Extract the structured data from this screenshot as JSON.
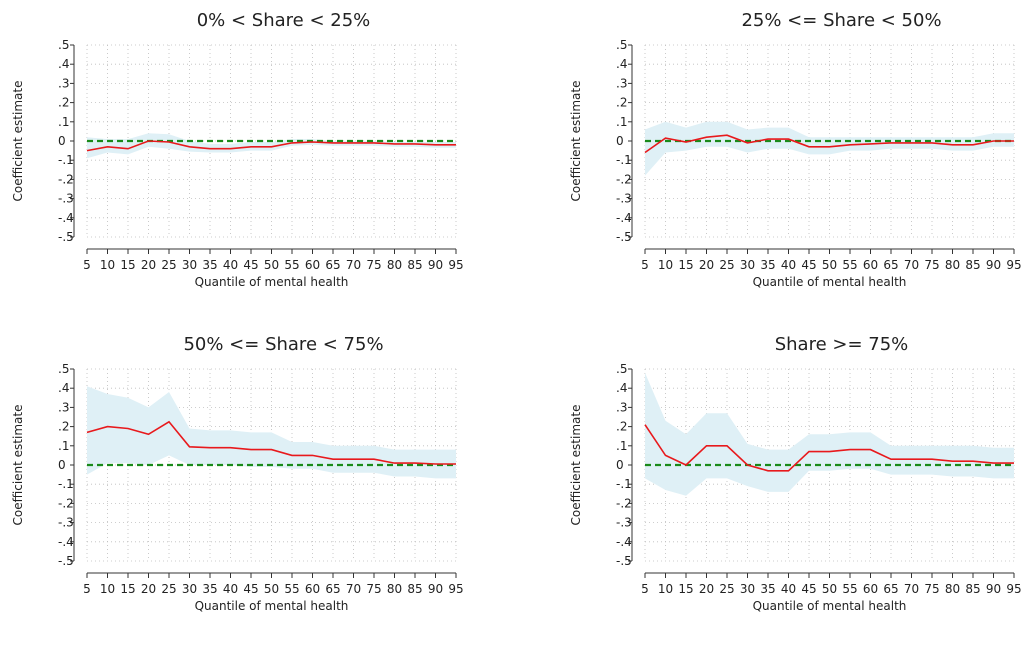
{
  "chart_data": [
    {
      "type": "line",
      "title": "0%  < Share < 25%",
      "xlabel": "Quantile of mental health",
      "ylabel": "Coefficient estimate",
      "x": [
        5,
        10,
        15,
        20,
        25,
        30,
        35,
        40,
        45,
        50,
        55,
        60,
        65,
        70,
        75,
        80,
        85,
        90,
        95
      ],
      "x_tick_labels": [
        "5",
        "10",
        "15",
        "20",
        "25",
        "30",
        "35",
        "40",
        "45",
        "50",
        "55",
        "60",
        "65",
        "70",
        "75",
        "80",
        "85",
        "90",
        "95"
      ],
      "y_tick_labels": [
        ".5",
        ".4",
        ".3",
        ".2",
        ".1",
        "0",
        "-.1",
        "-.2",
        "-.3",
        "-.4",
        "-.5"
      ],
      "ylim": [
        -0.5,
        0.5
      ],
      "grid": true,
      "series": [
        {
          "role": "estimate",
          "color": "#e8191c",
          "values": [
            -0.05,
            -0.03,
            -0.04,
            0.0,
            -0.005,
            -0.03,
            -0.04,
            -0.04,
            -0.03,
            -0.03,
            -0.01,
            -0.005,
            -0.01,
            -0.01,
            -0.01,
            -0.015,
            -0.015,
            -0.02,
            -0.02
          ]
        },
        {
          "role": "ci_lower",
          "values": [
            -0.09,
            -0.06,
            -0.07,
            -0.03,
            -0.04,
            -0.055,
            -0.06,
            -0.06,
            -0.05,
            -0.05,
            -0.025,
            -0.02,
            -0.025,
            -0.025,
            -0.025,
            -0.03,
            -0.03,
            -0.035,
            -0.035
          ]
        },
        {
          "role": "ci_upper",
          "values": [
            0.02,
            0.01,
            0.01,
            0.04,
            0.035,
            0.0,
            -0.015,
            -0.015,
            -0.005,
            -0.005,
            0.01,
            0.01,
            0.0,
            0.0,
            0.0,
            -0.005,
            -0.005,
            -0.005,
            -0.005
          ]
        }
      ],
      "reference_line": {
        "y": 0,
        "color": "#1a8a1a",
        "style": "dashed"
      },
      "ci_color": "#dff0f6"
    },
    {
      "type": "line",
      "title": "25% <= Share < 50%",
      "xlabel": "Quantile of mental health",
      "ylabel": "Coefficient estimate",
      "x": [
        5,
        10,
        15,
        20,
        25,
        30,
        35,
        40,
        45,
        50,
        55,
        60,
        65,
        70,
        75,
        80,
        85,
        90,
        95
      ],
      "x_tick_labels": [
        "5",
        "10",
        "15",
        "20",
        "25",
        "30",
        "35",
        "40",
        "45",
        "50",
        "55",
        "60",
        "65",
        "70",
        "75",
        "80",
        "85",
        "90",
        "95"
      ],
      "y_tick_labels": [
        ".5",
        ".4",
        ".3",
        ".2",
        ".1",
        "0",
        "-.1",
        "-.2",
        "-.3",
        "-.4",
        "-.5"
      ],
      "ylim": [
        -0.5,
        0.5
      ],
      "grid": true,
      "series": [
        {
          "role": "estimate",
          "color": "#e8191c",
          "values": [
            -0.06,
            0.015,
            -0.005,
            0.02,
            0.03,
            -0.01,
            0.01,
            0.01,
            -0.03,
            -0.03,
            -0.02,
            -0.015,
            -0.01,
            -0.01,
            -0.01,
            -0.02,
            -0.02,
            0.0,
            0.0
          ]
        },
        {
          "role": "ci_lower",
          "values": [
            -0.18,
            -0.06,
            -0.05,
            -0.03,
            -0.03,
            -0.06,
            -0.04,
            -0.04,
            -0.07,
            -0.07,
            -0.05,
            -0.05,
            -0.04,
            -0.04,
            -0.04,
            -0.05,
            -0.05,
            -0.03,
            -0.03
          ]
        },
        {
          "role": "ci_upper",
          "values": [
            0.06,
            0.1,
            0.07,
            0.1,
            0.1,
            0.06,
            0.07,
            0.07,
            0.02,
            0.02,
            0.02,
            0.02,
            0.02,
            0.02,
            0.02,
            0.02,
            0.02,
            0.04,
            0.04
          ]
        }
      ],
      "reference_line": {
        "y": 0,
        "color": "#1a8a1a",
        "style": "dashed"
      },
      "ci_color": "#dff0f6"
    },
    {
      "type": "line",
      "title": "50% <= Share < 75%",
      "xlabel": "Quantile of mental health",
      "ylabel": "Coefficient estimate",
      "x": [
        5,
        10,
        15,
        20,
        25,
        30,
        35,
        40,
        45,
        50,
        55,
        60,
        65,
        70,
        75,
        80,
        85,
        90,
        95
      ],
      "x_tick_labels": [
        "5",
        "10",
        "15",
        "20",
        "25",
        "30",
        "35",
        "40",
        "45",
        "50",
        "55",
        "60",
        "65",
        "70",
        "75",
        "80",
        "85",
        "90",
        "95"
      ],
      "y_tick_labels": [
        ".5",
        ".4",
        ".3",
        ".2",
        ".1",
        "0",
        "-.1",
        "-.2",
        "-.3",
        "-.4",
        "-.5"
      ],
      "ylim": [
        -0.5,
        0.5
      ],
      "grid": true,
      "series": [
        {
          "role": "estimate",
          "color": "#e8191c",
          "values": [
            0.17,
            0.2,
            0.19,
            0.16,
            0.225,
            0.095,
            0.09,
            0.09,
            0.08,
            0.08,
            0.05,
            0.05,
            0.03,
            0.03,
            0.03,
            0.01,
            0.01,
            0.005,
            0.005
          ]
        },
        {
          "role": "ci_lower",
          "values": [
            -0.05,
            0.01,
            0.01,
            0.0,
            0.05,
            0.0,
            0.0,
            0.0,
            -0.01,
            -0.01,
            -0.02,
            -0.02,
            -0.04,
            -0.04,
            -0.04,
            -0.06,
            -0.06,
            -0.07,
            -0.07
          ]
        },
        {
          "role": "ci_upper",
          "values": [
            0.41,
            0.37,
            0.35,
            0.3,
            0.38,
            0.19,
            0.18,
            0.18,
            0.17,
            0.17,
            0.12,
            0.12,
            0.1,
            0.1,
            0.1,
            0.08,
            0.08,
            0.08,
            0.08
          ]
        }
      ],
      "reference_line": {
        "y": 0,
        "color": "#1a8a1a",
        "style": "dashed"
      },
      "ci_color": "#dff0f6"
    },
    {
      "type": "line",
      "title": "Share >= 75%",
      "xlabel": "Quantile of mental health",
      "ylabel": "Coefficient estimate",
      "x": [
        5,
        10,
        15,
        20,
        25,
        30,
        35,
        40,
        45,
        50,
        55,
        60,
        65,
        70,
        75,
        80,
        85,
        90,
        95
      ],
      "x_tick_labels": [
        "5",
        "10",
        "15",
        "20",
        "25",
        "30",
        "35",
        "40",
        "45",
        "50",
        "55",
        "60",
        "65",
        "70",
        "75",
        "80",
        "85",
        "90",
        "95"
      ],
      "y_tick_labels": [
        ".5",
        ".4",
        ".3",
        ".2",
        ".1",
        "0",
        "-.1",
        "-.2",
        "-.3",
        "-.4",
        "-.5"
      ],
      "ylim": [
        -0.5,
        0.5
      ],
      "grid": true,
      "series": [
        {
          "role": "estimate",
          "color": "#e8191c",
          "values": [
            0.21,
            0.05,
            0.0,
            0.1,
            0.1,
            0.0,
            -0.03,
            -0.03,
            0.07,
            0.07,
            0.08,
            0.08,
            0.03,
            0.03,
            0.03,
            0.02,
            0.02,
            0.01,
            0.01
          ]
        },
        {
          "role": "ci_lower",
          "values": [
            -0.07,
            -0.13,
            -0.16,
            -0.07,
            -0.07,
            -0.11,
            -0.14,
            -0.14,
            -0.03,
            -0.03,
            -0.02,
            -0.02,
            -0.05,
            -0.05,
            -0.05,
            -0.06,
            -0.06,
            -0.07,
            -0.07
          ]
        },
        {
          "role": "ci_upper",
          "values": [
            0.48,
            0.23,
            0.16,
            0.27,
            0.27,
            0.11,
            0.08,
            0.08,
            0.16,
            0.16,
            0.17,
            0.17,
            0.1,
            0.1,
            0.1,
            0.1,
            0.1,
            0.09,
            0.09
          ]
        }
      ],
      "reference_line": {
        "y": 0,
        "color": "#1a8a1a",
        "style": "dashed"
      },
      "ci_color": "#dff0f6"
    }
  ]
}
